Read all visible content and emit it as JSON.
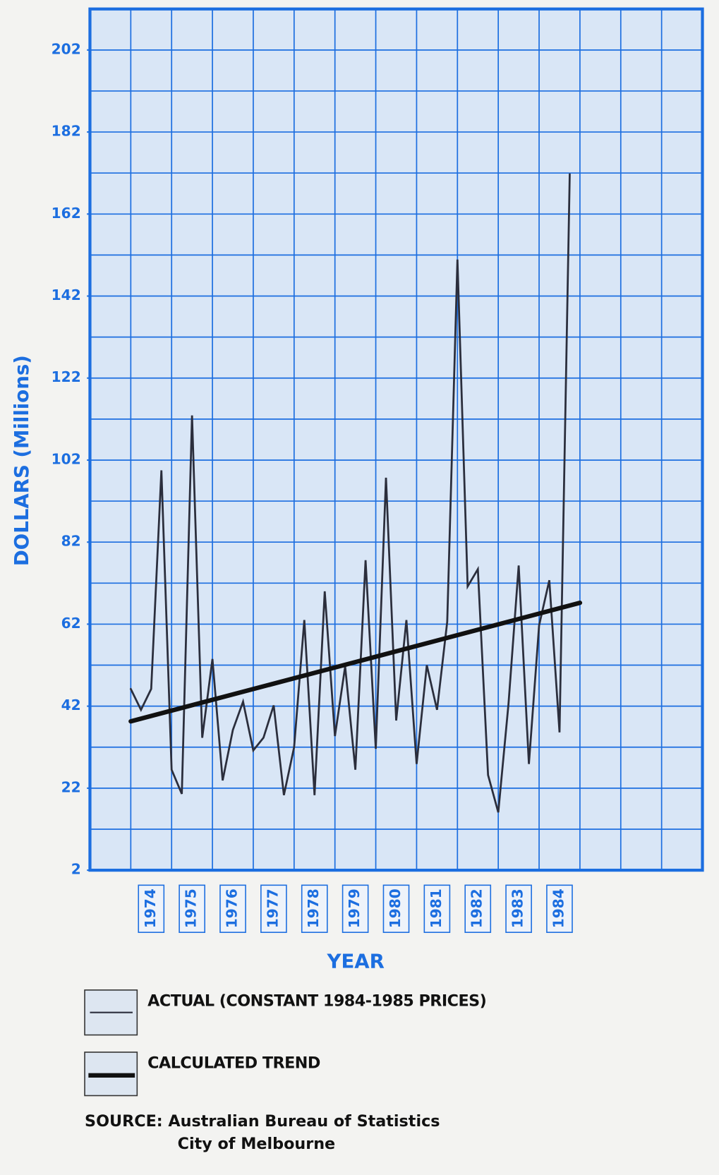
{
  "chart_data": {
    "type": "line",
    "y_label": "DOLLARS (Millions)",
    "x_label": "YEAR",
    "x": [
      1974,
      1974.25,
      1974.5,
      1974.75,
      1975,
      1975.25,
      1975.5,
      1975.75,
      1976,
      1976.25,
      1976.5,
      1976.75,
      1977,
      1977.25,
      1977.5,
      1977.75,
      1978,
      1978.25,
      1978.5,
      1978.75,
      1979,
      1979.25,
      1979.5,
      1979.75,
      1980,
      1980.25,
      1980.5,
      1980.75,
      1981,
      1981.25,
      1981.5,
      1981.75,
      1982,
      1982.25,
      1982.5,
      1982.75,
      1983,
      1983.25,
      1983.5,
      1983.75,
      1984,
      1984.25,
      1984.5,
      1984.75
    ],
    "series": [
      {
        "name": "ACTUAL (CONSTANT 1984-1985 PRICES)",
        "color": "#2b2e3c",
        "values": [
          46.2,
          41.1,
          46.2,
          99.5,
          26.5,
          20.6,
          112.9,
          34.3,
          53.5,
          23.9,
          36.2,
          43.1,
          31.2,
          34.3,
          42.2,
          20.3,
          32,
          63,
          20.3,
          70,
          34.7,
          51.7,
          26.5,
          77.6,
          31.6,
          97.7,
          38.5,
          63,
          27.9,
          52,
          41.1,
          62.6,
          150.9,
          71.2,
          75.4,
          25.2,
          16.1,
          42.5,
          76.3,
          27.9,
          61.7,
          72.7,
          35.6,
          171.7
        ]
      },
      {
        "name": "CALCULATED TREND",
        "color": "#111111",
        "x": [
          1974,
          1985
        ],
        "values": [
          38.3,
          67.2
        ]
      }
    ],
    "xlim": [
      1973,
      1988
    ],
    "xticks": [
      1974,
      1975,
      1976,
      1977,
      1978,
      1979,
      1980,
      1981,
      1982,
      1983,
      1984
    ],
    "ylim": [
      2,
      212
    ],
    "yticks": [
      2,
      22,
      42,
      62,
      82,
      102,
      122,
      142,
      162,
      182,
      202
    ],
    "grid": true,
    "source": [
      "SOURCE: Australian Bureau of Statistics",
      "City of Melbourne"
    ]
  }
}
